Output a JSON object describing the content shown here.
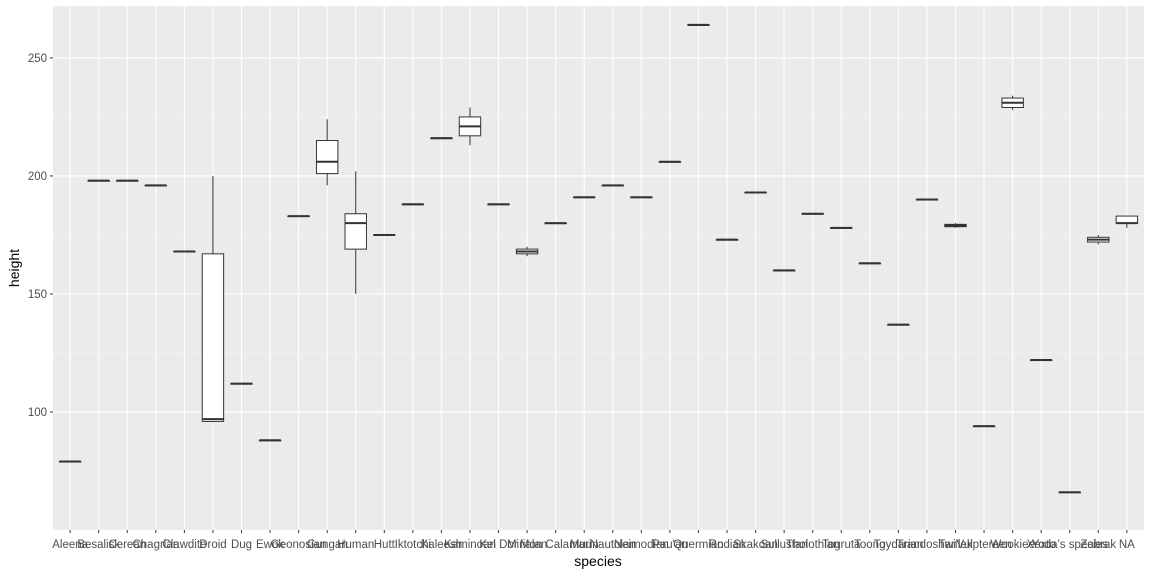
{
  "chart_data": {
    "type": "boxplot",
    "title": "",
    "xlabel": "species",
    "ylabel": "height",
    "ylim": [
      50,
      272
    ],
    "y_ticks": [
      100,
      150,
      200,
      250
    ],
    "grid": true,
    "colors": {
      "panel": "#ebebeb",
      "grid_major": "#ffffff",
      "box_fill": "#ffffff",
      "box_line": "#333333",
      "text": "#4d4d4d"
    },
    "categories": [
      "Aleena",
      "Besalisk",
      "Cerean",
      "Chagrian",
      "Clawdite",
      "Droid",
      "Dug",
      "Ewok",
      "Geonosian",
      "Gungan",
      "Human",
      "Hutt",
      "Iktotchi",
      "Kaleesh",
      "Kaminoan",
      "Kel Dor",
      "Mirialan",
      "Mon Calamari",
      "Muun",
      "Nautolan",
      "Neimodian",
      "Pau'an",
      "Quermian",
      "Rodian",
      "Skakoan",
      "Sullustan",
      "Tholothian",
      "Togruta",
      "Toong",
      "Toydarian",
      "Trandoshan",
      "Twi'lek",
      "Vulptereen",
      "Wookiee",
      "Xexto",
      "Yoda's species",
      "Zabrak",
      "NA"
    ],
    "boxes": [
      {
        "min": 79,
        "q1": 79,
        "median": 79,
        "q3": 79,
        "max": 79
      },
      {
        "min": 198,
        "q1": 198,
        "median": 198,
        "q3": 198,
        "max": 198
      },
      {
        "min": 198,
        "q1": 198,
        "median": 198,
        "q3": 198,
        "max": 198
      },
      {
        "min": 196,
        "q1": 196,
        "median": 196,
        "q3": 196,
        "max": 196
      },
      {
        "min": 168,
        "q1": 168,
        "median": 168,
        "q3": 168,
        "max": 168
      },
      {
        "min": 96,
        "q1": 96,
        "median": 97,
        "q3": 167,
        "max": 200
      },
      {
        "min": 112,
        "q1": 112,
        "median": 112,
        "q3": 112,
        "max": 112
      },
      {
        "min": 88,
        "q1": 88,
        "median": 88,
        "q3": 88,
        "max": 88
      },
      {
        "min": 183,
        "q1": 183,
        "median": 183,
        "q3": 183,
        "max": 183
      },
      {
        "min": 196,
        "q1": 201,
        "median": 206,
        "q3": 215,
        "max": 224
      },
      {
        "min": 150,
        "q1": 169,
        "median": 180,
        "q3": 184,
        "max": 202
      },
      {
        "min": 175,
        "q1": 175,
        "median": 175,
        "q3": 175,
        "max": 175
      },
      {
        "min": 188,
        "q1": 188,
        "median": 188,
        "q3": 188,
        "max": 188
      },
      {
        "min": 216,
        "q1": 216,
        "median": 216,
        "q3": 216,
        "max": 216
      },
      {
        "min": 213,
        "q1": 217,
        "median": 221,
        "q3": 225,
        "max": 229
      },
      {
        "min": 188,
        "q1": 188,
        "median": 188,
        "q3": 188,
        "max": 188
      },
      {
        "min": 166,
        "q1": 167,
        "median": 168,
        "q3": 169,
        "max": 170
      },
      {
        "min": 180,
        "q1": 180,
        "median": 180,
        "q3": 180,
        "max": 180
      },
      {
        "min": 191,
        "q1": 191,
        "median": 191,
        "q3": 191,
        "max": 191
      },
      {
        "min": 196,
        "q1": 196,
        "median": 196,
        "q3": 196,
        "max": 196
      },
      {
        "min": 191,
        "q1": 191,
        "median": 191,
        "q3": 191,
        "max": 191
      },
      {
        "min": 206,
        "q1": 206,
        "median": 206,
        "q3": 206,
        "max": 206
      },
      {
        "min": 264,
        "q1": 264,
        "median": 264,
        "q3": 264,
        "max": 264
      },
      {
        "min": 173,
        "q1": 173,
        "median": 173,
        "q3": 173,
        "max": 173
      },
      {
        "min": 193,
        "q1": 193,
        "median": 193,
        "q3": 193,
        "max": 193
      },
      {
        "min": 160,
        "q1": 160,
        "median": 160,
        "q3": 160,
        "max": 160
      },
      {
        "min": 184,
        "q1": 184,
        "median": 184,
        "q3": 184,
        "max": 184
      },
      {
        "min": 178,
        "q1": 178,
        "median": 178,
        "q3": 178,
        "max": 178
      },
      {
        "min": 163,
        "q1": 163,
        "median": 163,
        "q3": 163,
        "max": 163
      },
      {
        "min": 137,
        "q1": 137,
        "median": 137,
        "q3": 137,
        "max": 137
      },
      {
        "min": 190,
        "q1": 190,
        "median": 190,
        "q3": 190,
        "max": 190
      },
      {
        "min": 178,
        "q1": 178.5,
        "median": 179,
        "q3": 179.5,
        "max": 180
      },
      {
        "min": 94,
        "q1": 94,
        "median": 94,
        "q3": 94,
        "max": 94
      },
      {
        "min": 228,
        "q1": 229,
        "median": 231,
        "q3": 233,
        "max": 234
      },
      {
        "min": 122,
        "q1": 122,
        "median": 122,
        "q3": 122,
        "max": 122
      },
      {
        "min": 66,
        "q1": 66,
        "median": 66,
        "q3": 66,
        "max": 66
      },
      {
        "min": 171,
        "q1": 172,
        "median": 173,
        "q3": 174,
        "max": 175
      },
      {
        "min": 178,
        "q1": 180,
        "median": 180,
        "q3": 183,
        "max": 183
      }
    ]
  }
}
